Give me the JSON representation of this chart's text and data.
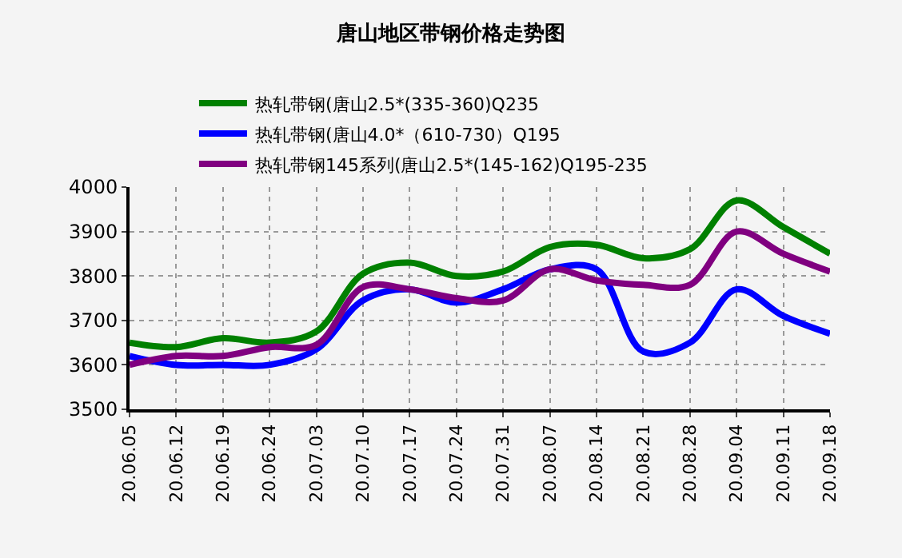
{
  "chart_data": {
    "type": "line",
    "title": "唐山地区带钢价格走势图",
    "categories": [
      "20.06.05",
      "20.06.12",
      "20.06.19",
      "20.06.24",
      "20.07.03",
      "20.07.10",
      "20.07.17",
      "20.07.24",
      "20.07.31",
      "20.08.07",
      "20.08.14",
      "20.08.21",
      "20.08.28",
      "20.09.04",
      "20.09.11",
      "20.09.18"
    ],
    "series": [
      {
        "name": "热轧带钢(唐山2.5*(335-360)Q235",
        "color": "#008000",
        "values": [
          3650,
          3640,
          3660,
          3650,
          3675,
          3805,
          3830,
          3800,
          3810,
          3865,
          3870,
          3840,
          3860,
          3970,
          3910,
          3850
        ]
      },
      {
        "name": "热轧带钢(唐山4.0*（610-730）Q195",
        "color": "#0000ff",
        "values": [
          3620,
          3600,
          3600,
          3600,
          3635,
          3745,
          3770,
          3740,
          3770,
          3815,
          3815,
          3630,
          3650,
          3770,
          3710,
          3670
        ]
      },
      {
        "name": "热轧带钢145系列(唐山2.5*(145-162)Q195-235",
        "color": "#800080",
        "values": [
          3600,
          3620,
          3620,
          3640,
          3645,
          3775,
          3770,
          3750,
          3745,
          3815,
          3790,
          3780,
          3780,
          3900,
          3850,
          3810
        ]
      }
    ],
    "ylim": [
      3500,
      4000
    ],
    "yticks": [
      3500,
      3600,
      3700,
      3800,
      3900,
      4000
    ],
    "grid": true,
    "legend": "top",
    "marker": "none",
    "line_style": "solid"
  }
}
